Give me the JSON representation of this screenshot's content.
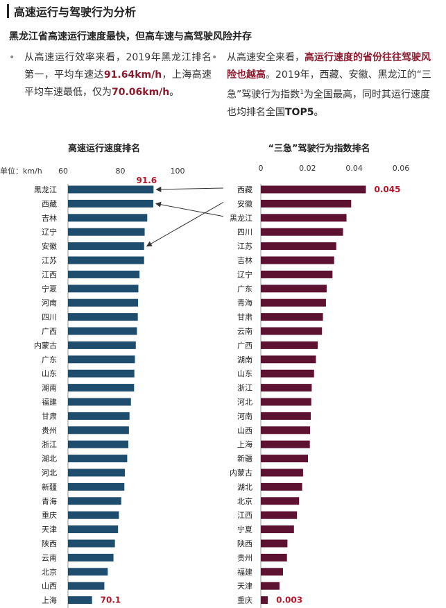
{
  "header": {
    "title": "高速运行与驾驶行为分析"
  },
  "subtitle": "黑龙江省高速运行速度最快，但高车速与高驾驶风险并存",
  "left_text": {
    "part1": "从高速运行效率来看，2019年黑龙江排名第一，平均车速达",
    "highlight1": "91.64km/h",
    "part2": "，上海高速平均车速最低，仅为",
    "highlight2": "70.06km/h",
    "part3": "。"
  },
  "right_text": {
    "part1": "从高速安全来看，",
    "highlight1": "高运行速度的省份往往驾驶风险也越高",
    "part2": "。2019年，西藏、安徽、黑龙江的“三急”驾驶行为指数",
    "sup": "1",
    "part3": "为全国最高，同时其运行速度也均排名全国",
    "highlight2": "TOP5",
    "part4": "。"
  },
  "chart_data": [
    {
      "type": "bar",
      "orientation": "horizontal",
      "title": "高速运行速度排名",
      "unit_label": "单位：km/h",
      "xlim": [
        60,
        100
      ],
      "xticks": [
        60,
        80,
        100
      ],
      "color": "#1e4d6e",
      "categories": [
        "黑龙江",
        "西藏",
        "吉林",
        "辽宁",
        "安徽",
        "江苏",
        "江西",
        "宁夏",
        "河南",
        "四川",
        "广西",
        "内蒙古",
        "广东",
        "山东",
        "湖南",
        "福建",
        "甘肃",
        "贵州",
        "浙江",
        "湖北",
        "河北",
        "新疆",
        "青海",
        "重庆",
        "天津",
        "陕西",
        "云南",
        "北京",
        "山西",
        "上海"
      ],
      "values": [
        91.6,
        91.5,
        89.4,
        88.5,
        88.3,
        88.3,
        86.7,
        86.3,
        86.2,
        86.1,
        85.8,
        85.4,
        85.1,
        84.9,
        84.8,
        83.7,
        83.2,
        83.0,
        82.8,
        82.4,
        81.6,
        81.4,
        80.3,
        79.5,
        79.2,
        78.1,
        77.6,
        75.6,
        74.4,
        70.1
      ],
      "data_labels": [
        {
          "index": 0,
          "text": "91.6"
        },
        {
          "index": 29,
          "text": "70.1"
        }
      ],
      "label_color": "#b5172a"
    },
    {
      "type": "bar",
      "orientation": "horizontal",
      "title": "“三急”驾驶行为指数排名",
      "xlim": [
        0,
        0.06
      ],
      "xticks": [
        0,
        0.02,
        0.04,
        0.06
      ],
      "color": "#5c1230",
      "categories": [
        "西藏",
        "安徽",
        "黑龙江",
        "四川",
        "江苏",
        "吉林",
        "辽宁",
        "广东",
        "青海",
        "甘肃",
        "云南",
        "广西",
        "湖南",
        "山东",
        "浙江",
        "河北",
        "河南",
        "山西",
        "上海",
        "新疆",
        "内蒙古",
        "湖北",
        "北京",
        "江西",
        "宁夏",
        "陕西",
        "贵州",
        "福建",
        "天津",
        "重庆"
      ],
      "values": [
        0.045,
        0.0387,
        0.0367,
        0.0352,
        0.0323,
        0.0314,
        0.0307,
        0.0282,
        0.0279,
        0.0266,
        0.0262,
        0.0244,
        0.0236,
        0.0228,
        0.0218,
        0.0216,
        0.0214,
        0.0211,
        0.021,
        0.0202,
        0.0181,
        0.0177,
        0.0164,
        0.0155,
        0.0142,
        0.0114,
        0.0112,
        0.0095,
        0.008,
        0.003
      ],
      "data_labels": [
        {
          "index": 0,
          "text": "0.045"
        },
        {
          "index": 29,
          "text": "0.003"
        }
      ],
      "label_color": "#b5172a"
    }
  ],
  "arrows": [
    {
      "from": "西藏",
      "to": "黑龙江"
    },
    {
      "from": "安徽",
      "to": "安徽"
    },
    {
      "from": "黑龙江",
      "to": "西藏"
    }
  ]
}
